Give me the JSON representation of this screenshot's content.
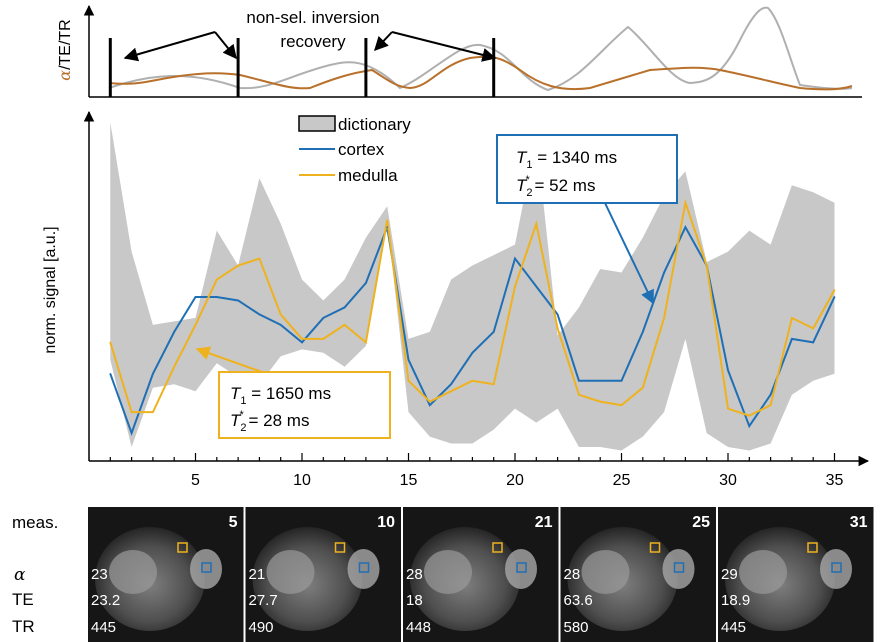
{
  "top_panel": {
    "ylabel_alpha": "α",
    "ylabel_rest": "/TE/TR",
    "annotation_line1": "non-sel. inversion",
    "annotation_line2": "recovery",
    "inversion_measurements": [
      1,
      7,
      13,
      19
    ],
    "colors": {
      "alpha": "#b8702a",
      "te": "#b0b0b0"
    }
  },
  "chart_data": {
    "type": "line",
    "ylabel": "norm. signal [a.u.]",
    "x": [
      1,
      2,
      3,
      4,
      5,
      6,
      7,
      8,
      9,
      10,
      11,
      12,
      13,
      14,
      15,
      16,
      17,
      18,
      19,
      20,
      21,
      22,
      23,
      24,
      25,
      26,
      27,
      28,
      29,
      30,
      31,
      32,
      33,
      34,
      35
    ],
    "xticks": [
      5,
      10,
      15,
      20,
      25,
      30,
      35
    ],
    "xlim": [
      0,
      35.5
    ],
    "ylim": [
      0,
      1
    ],
    "legend": {
      "placement": "top-center",
      "entries": [
        {
          "label": "dictionary",
          "kind": "band",
          "color": "#c8c8c8"
        },
        {
          "label": "cortex",
          "kind": "line",
          "color": "#1f6fb5"
        },
        {
          "label": "medulla",
          "kind": "line",
          "color": "#efb21f"
        }
      ]
    },
    "dictionary_band": {
      "upper": [
        0.97,
        0.6,
        0.39,
        0.4,
        0.41,
        0.66,
        0.56,
        0.81,
        0.68,
        0.52,
        0.46,
        0.52,
        0.64,
        0.73,
        0.35,
        0.37,
        0.52,
        0.56,
        0.59,
        0.62,
        0.93,
        0.36,
        0.44,
        0.55,
        0.54,
        0.64,
        0.76,
        0.83,
        0.57,
        0.6,
        0.66,
        0.62,
        0.79,
        0.77,
        0.74
      ],
      "lower": [
        0.29,
        0.04,
        0.21,
        0.22,
        0.2,
        0.28,
        0.24,
        0.22,
        0.3,
        0.32,
        0.31,
        0.27,
        0.33,
        0.69,
        0.14,
        0.07,
        0.05,
        0.05,
        0.09,
        0.15,
        0.11,
        0.15,
        0.04,
        0.04,
        0.03,
        0.07,
        0.14,
        0.35,
        0.08,
        0.04,
        0.03,
        0.05,
        0.19,
        0.23,
        0.25
      ]
    },
    "series": [
      {
        "name": "cortex",
        "color": "#1f6fb5",
        "values": [
          0.25,
          0.08,
          0.25,
          0.37,
          0.47,
          0.47,
          0.46,
          0.42,
          0.39,
          0.34,
          0.41,
          0.44,
          0.51,
          0.67,
          0.29,
          0.16,
          0.22,
          0.31,
          0.37,
          0.58,
          0.5,
          0.42,
          0.23,
          0.23,
          0.23,
          0.37,
          0.54,
          0.67,
          0.56,
          0.26,
          0.1,
          0.19,
          0.35,
          0.34,
          0.47
        ]
      },
      {
        "name": "medulla",
        "color": "#efb21f",
        "values": [
          0.34,
          0.14,
          0.14,
          0.27,
          0.39,
          0.52,
          0.56,
          0.58,
          0.42,
          0.35,
          0.35,
          0.39,
          0.34,
          0.69,
          0.23,
          0.17,
          0.2,
          0.23,
          0.22,
          0.5,
          0.68,
          0.38,
          0.19,
          0.17,
          0.16,
          0.21,
          0.41,
          0.74,
          0.56,
          0.15,
          0.13,
          0.16,
          0.41,
          0.38,
          0.49
        ]
      }
    ],
    "annotations": [
      {
        "t1_label": "T",
        "t1_sub": "1",
        "t1_value": " = 1340 ms",
        "t2_label": "T",
        "t2_sub": "2",
        "t2_sup": "*",
        "t2_value": " = 52 ms",
        "color": "#1f6fb5",
        "target": "cortex"
      },
      {
        "t1_label": "T",
        "t1_sub": "1",
        "t1_value": " = 1650 ms",
        "t2_label": "T",
        "t2_sub": "2",
        "t2_sup": "*",
        "t2_value": " = 28 ms",
        "color": "#efb21f",
        "target": "medulla"
      }
    ]
  },
  "images": {
    "row_labels": [
      "meas.",
      "α",
      "TE",
      "TR"
    ],
    "panels": [
      {
        "meas": "5",
        "alpha": "23",
        "te": "23.2",
        "tr": "445"
      },
      {
        "meas": "10",
        "alpha": "21",
        "te": "27.7",
        "tr": "490"
      },
      {
        "meas": "21",
        "alpha": "28",
        "te": "18",
        "tr": "448"
      },
      {
        "meas": "25",
        "alpha": "28",
        "te": "63.6",
        "tr": "580"
      },
      {
        "meas": "31",
        "alpha": "29",
        "te": "18.9",
        "tr": "445"
      }
    ]
  }
}
